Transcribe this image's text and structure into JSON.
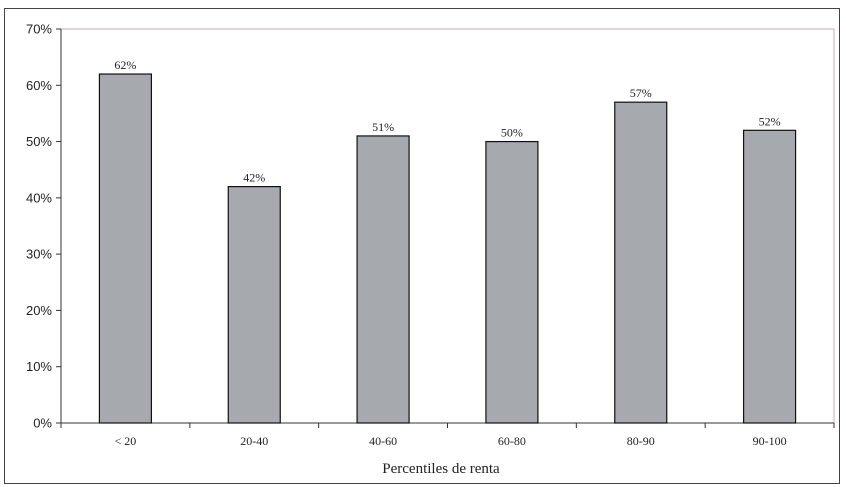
{
  "chart_data": {
    "type": "bar",
    "title": "",
    "xlabel": "Percentiles de renta",
    "ylabel": "",
    "categories": [
      "< 20",
      "20-40",
      "40-60",
      "60-80",
      "80-90",
      "90-100"
    ],
    "values": [
      62,
      42,
      51,
      50,
      57,
      52
    ],
    "data_labels": [
      "62%",
      "42%",
      "51%",
      "50%",
      "57%",
      "52%"
    ],
    "ylim": [
      0,
      70
    ],
    "yticks": [
      0,
      10,
      20,
      30,
      40,
      50,
      60,
      70
    ],
    "ytick_labels": [
      "0%",
      "10%",
      "20%",
      "30%",
      "40%",
      "50%",
      "60%",
      "70%"
    ],
    "grid": false,
    "legend": "none",
    "bar_color": "#a6a9ad",
    "bar_edge_color": "#111111"
  }
}
